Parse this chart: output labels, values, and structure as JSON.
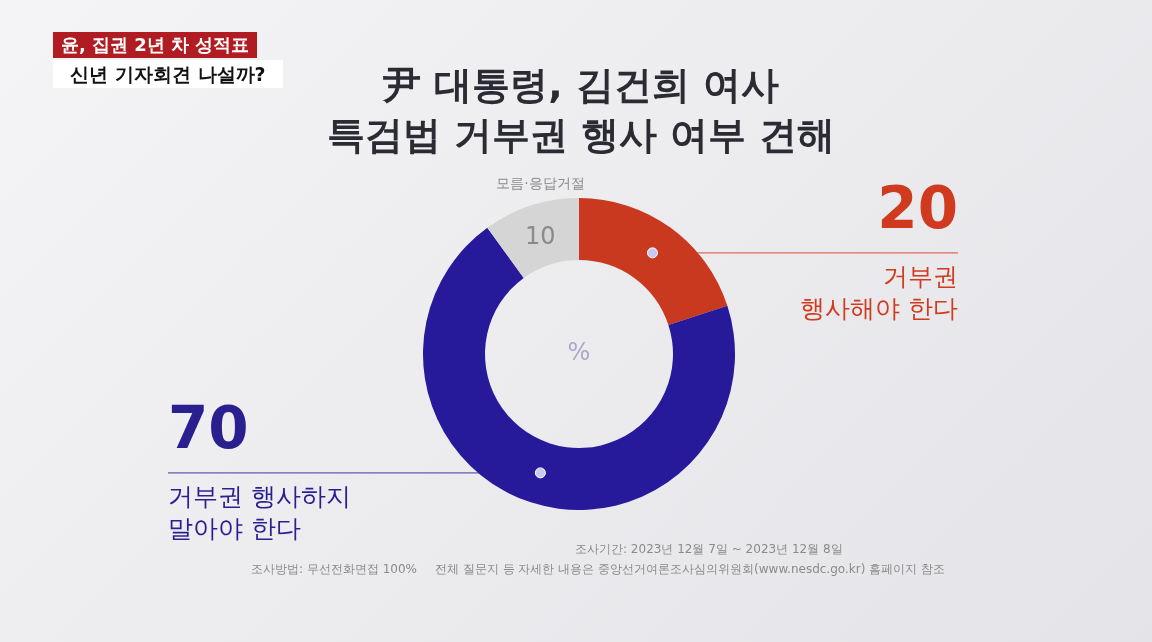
{
  "chart_data": {
    "type": "donut",
    "title": "尹 대통령, 김건희 여사 특검법 거부권 행사 여부 견해",
    "categories": [
      "거부권 행사해야 한다",
      "거부권 행사하지 말아야 한다",
      "모름·응답거절"
    ],
    "values": [
      20,
      70,
      10
    ],
    "colors": [
      "#c9391f",
      "#26199a",
      "#d5d5d5"
    ],
    "data_labels": true,
    "annotations": [
      "윤, 집권 2년 차 성적표",
      "신년 기자회견 나설까?",
      "%",
      "조사기간:  2023년 12월 7일 ~ 2023년 12월 8일",
      "조사방법: 무선전화면접 100%",
      "전체 질문지 등 자세한 내용은 중앙선거여론조사심의위원회(www.nesdc.go.kr) 홈페이지 참조"
    ]
  }
}
